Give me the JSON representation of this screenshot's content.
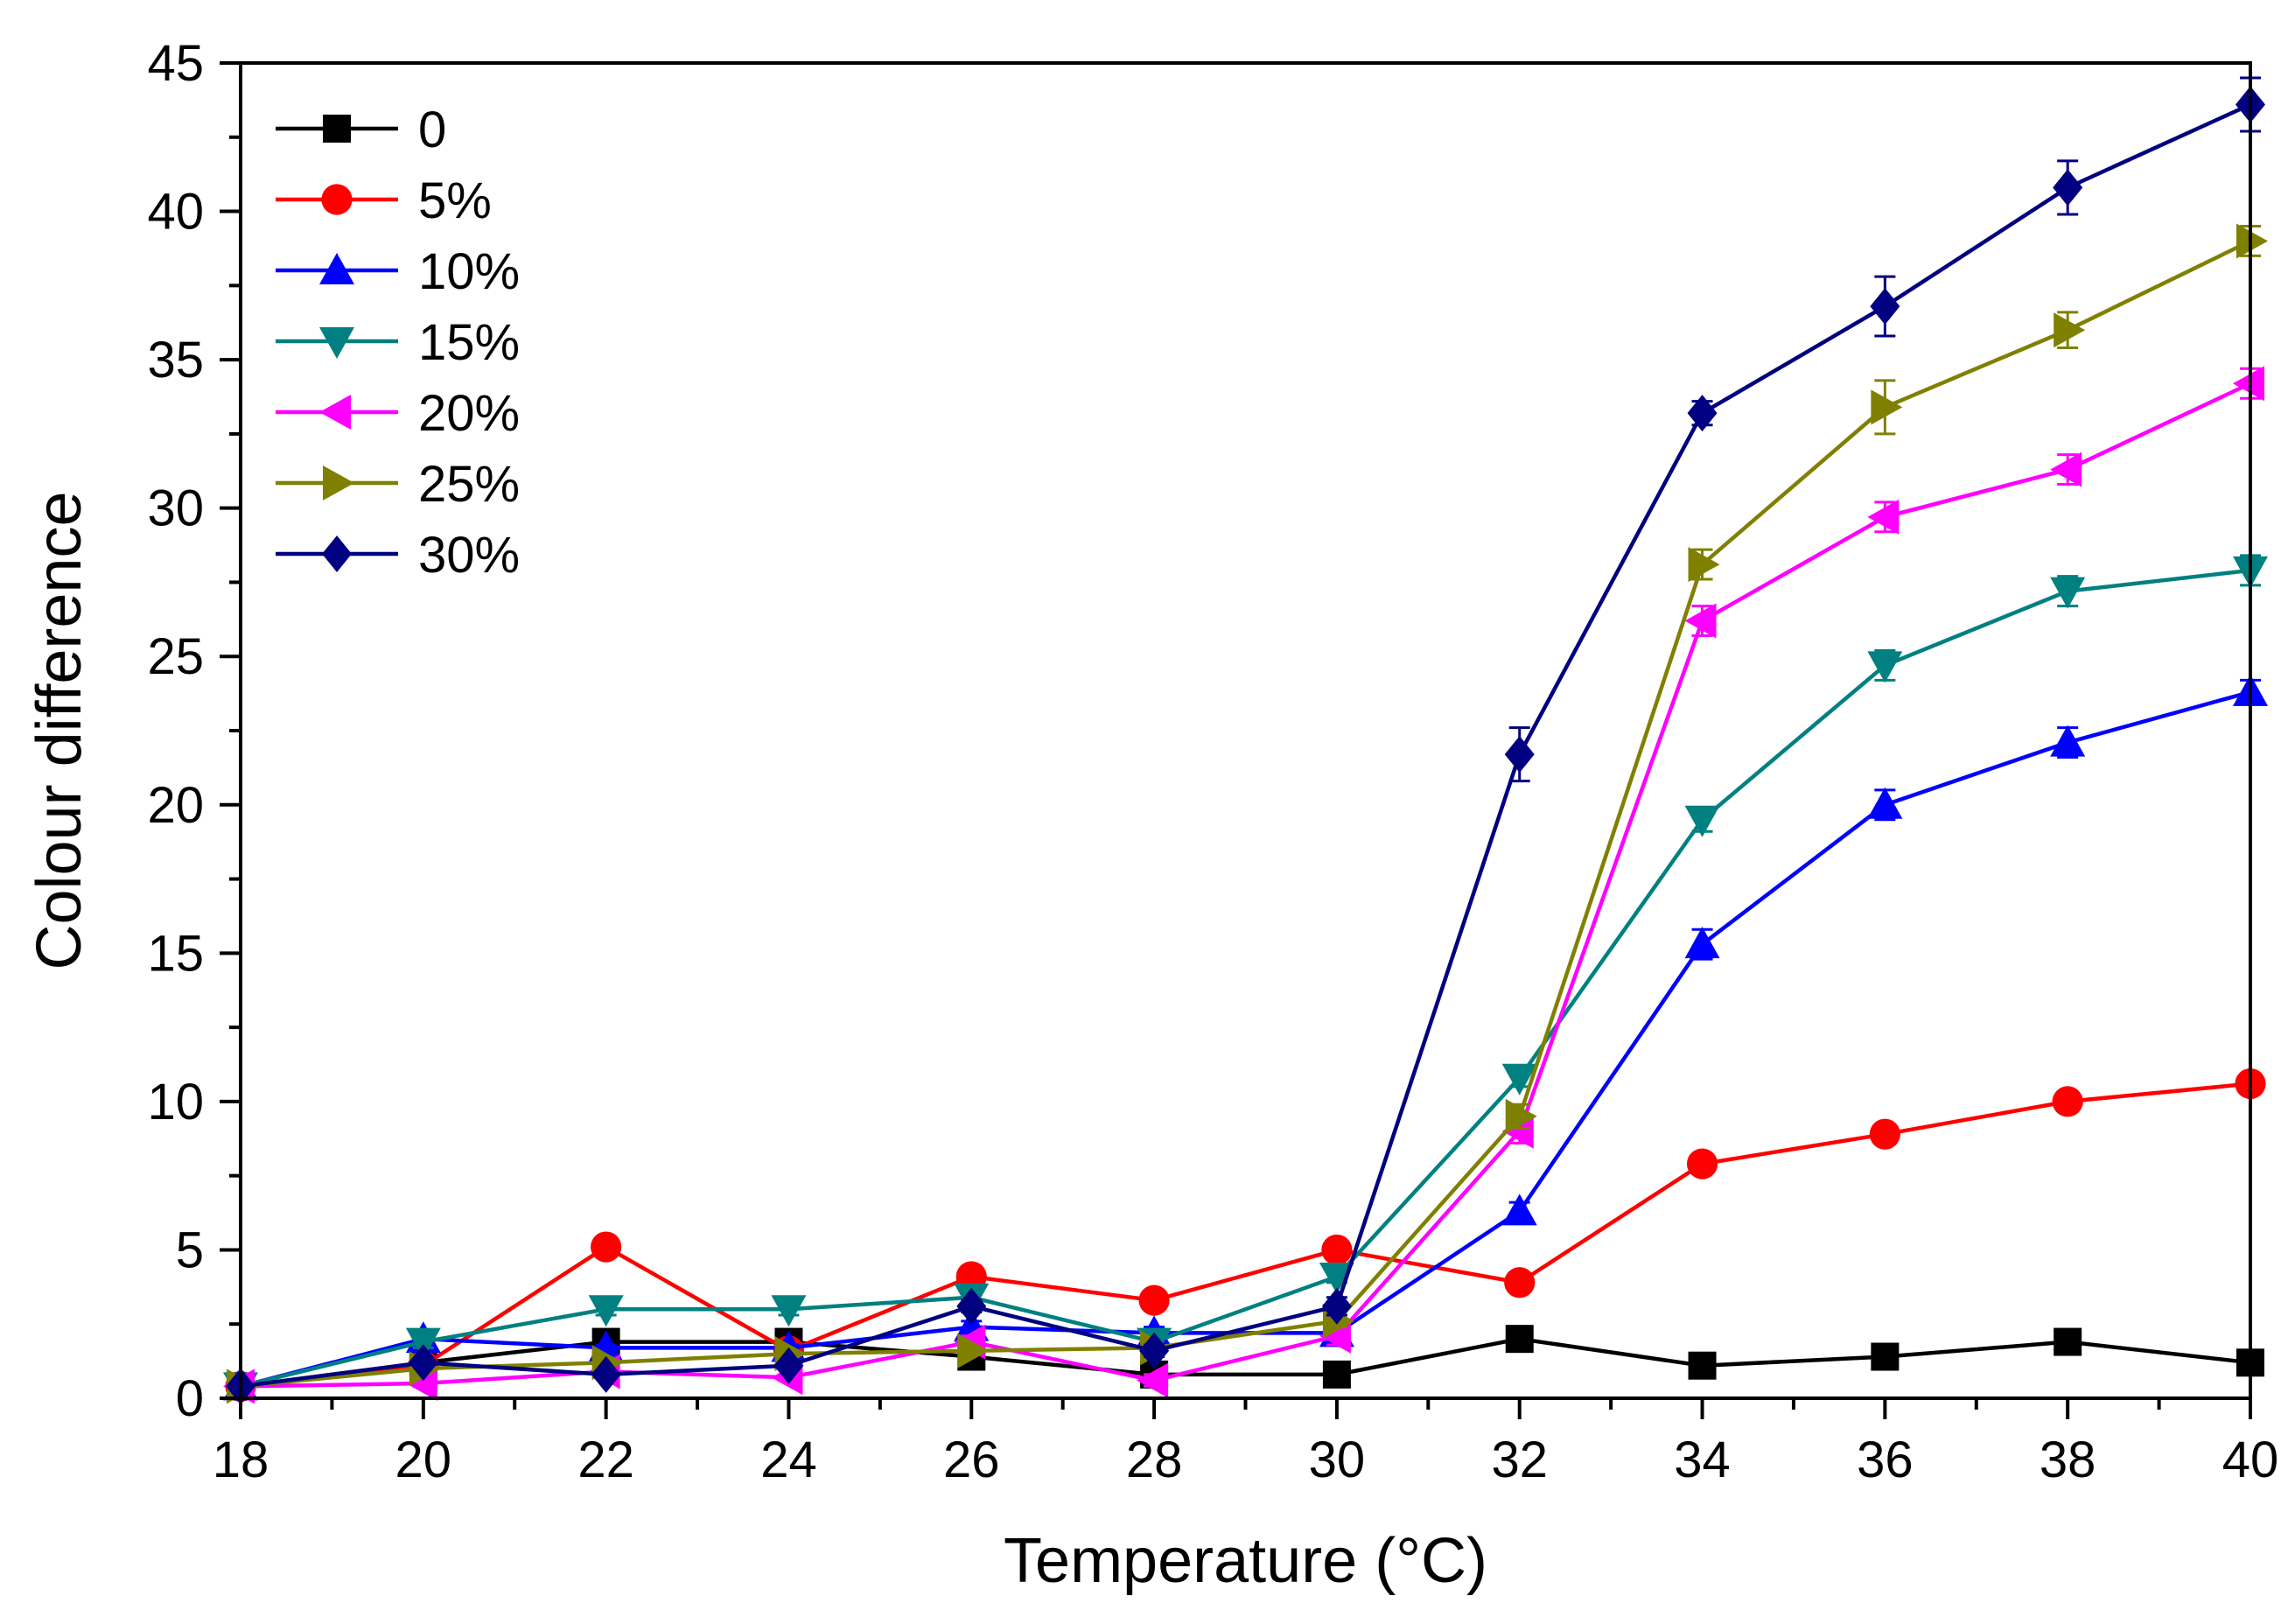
{
  "chart_data": {
    "type": "line",
    "title": "",
    "xlabel": "Temperature (°C)",
    "ylabel": "Colour difference",
    "xlim": [
      18,
      40
    ],
    "ylim": [
      0,
      45
    ],
    "xticks": [
      18,
      20,
      22,
      24,
      26,
      28,
      30,
      32,
      34,
      36,
      38,
      40
    ],
    "yticks": [
      0,
      5,
      10,
      15,
      20,
      25,
      30,
      35,
      40,
      45
    ],
    "xtick_labels": [
      "18",
      "20",
      "22",
      "24",
      "26",
      "28",
      "30",
      "32",
      "34",
      "36",
      "38",
      "40"
    ],
    "ytick_labels": [
      "0",
      "5",
      "10",
      "15",
      "20",
      "25",
      "30",
      "35",
      "40",
      "45"
    ],
    "legend_position": "top-left",
    "grid": false,
    "x": [
      18,
      20,
      22,
      24,
      26,
      28,
      30,
      32,
      34,
      36,
      38,
      40
    ],
    "series": [
      {
        "name": "0",
        "color": "#000000",
        "marker": "square",
        "values": [
          0.4,
          1.2,
          1.9,
          1.9,
          1.4,
          0.8,
          0.8,
          2.0,
          1.1,
          1.4,
          1.9,
          1.2
        ],
        "errors": [
          0.1,
          0.1,
          0.1,
          0.1,
          0.1,
          0.1,
          0.1,
          0.1,
          0.1,
          0.1,
          0.1,
          0.1
        ]
      },
      {
        "name": "5%",
        "color": "#ff0000",
        "marker": "circle",
        "values": [
          0.4,
          1.1,
          5.1,
          1.6,
          4.1,
          3.3,
          5.0,
          3.9,
          7.9,
          8.9,
          10.0,
          10.6
        ],
        "errors": [
          0.1,
          0.1,
          0.2,
          0.1,
          0.2,
          0.1,
          0.2,
          0.2,
          0.2,
          0.2,
          0.2,
          0.2
        ]
      },
      {
        "name": "10%",
        "color": "#0000ff",
        "marker": "triangle-up",
        "values": [
          0.4,
          2.0,
          1.7,
          1.7,
          2.4,
          2.2,
          2.2,
          6.3,
          15.3,
          20.0,
          22.1,
          23.8
        ],
        "errors": [
          0.1,
          0.2,
          0.1,
          0.1,
          0.2,
          0.2,
          0.2,
          0.3,
          0.5,
          0.5,
          0.5,
          0.4
        ]
      },
      {
        "name": "15%",
        "color": "#008080",
        "marker": "triangle-down",
        "values": [
          0.4,
          1.9,
          3.0,
          3.0,
          3.4,
          1.9,
          4.1,
          10.8,
          19.5,
          24.7,
          27.2,
          27.9
        ],
        "errors": [
          0.1,
          0.2,
          0.2,
          0.2,
          0.2,
          0.2,
          0.2,
          0.3,
          0.4,
          0.5,
          0.5,
          0.5
        ]
      },
      {
        "name": "20%",
        "color": "#ff00ff",
        "marker": "triangle-left",
        "values": [
          0.4,
          0.5,
          0.9,
          0.7,
          1.9,
          0.6,
          2.1,
          9.0,
          26.2,
          29.7,
          31.3,
          34.2
        ],
        "errors": [
          0.1,
          0.1,
          0.1,
          0.1,
          0.2,
          0.2,
          0.3,
          0.4,
          0.5,
          0.5,
          0.5,
          0.5
        ]
      },
      {
        "name": "25%",
        "color": "#808000",
        "marker": "triangle-right",
        "values": [
          0.4,
          1.0,
          1.2,
          1.5,
          1.6,
          1.7,
          2.6,
          9.5,
          28.1,
          33.4,
          36.0,
          39.0
        ],
        "errors": [
          0.1,
          0.1,
          0.1,
          0.1,
          0.1,
          0.1,
          0.2,
          0.4,
          0.5,
          0.9,
          0.6,
          0.5
        ]
      },
      {
        "name": "30%",
        "color": "#000080",
        "marker": "diamond",
        "values": [
          0.4,
          1.2,
          0.8,
          1.1,
          3.1,
          1.6,
          3.1,
          21.7,
          33.2,
          36.8,
          40.8,
          43.6
        ],
        "errors": [
          0.1,
          0.1,
          0.1,
          0.1,
          0.2,
          0.2,
          0.3,
          0.9,
          0.4,
          1.0,
          0.9,
          0.9
        ]
      }
    ]
  }
}
